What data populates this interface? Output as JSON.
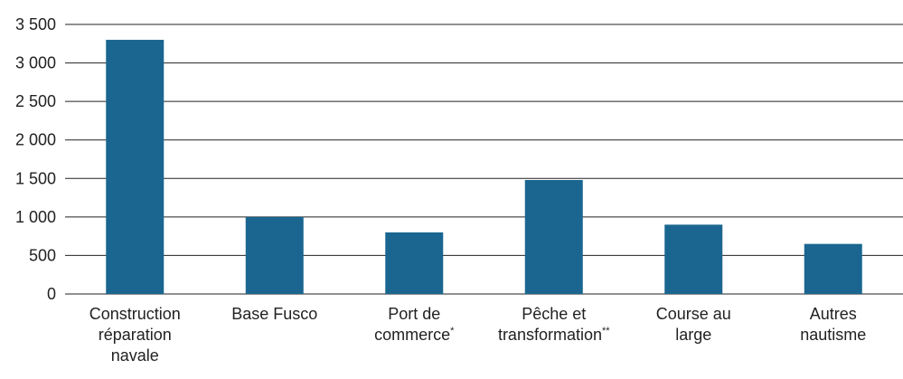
{
  "chart_data": {
    "type": "bar",
    "categories": [
      "Construction\nréparation\nnavale",
      "Base Fusco",
      "Port de\ncommerce*",
      "Pêche et\ntransformation**",
      "Course au\nlarge",
      "Autres\nnautisme"
    ],
    "values": [
      3300,
      1000,
      800,
      1480,
      900,
      650
    ],
    "color": "#1a6690",
    "ylim": [
      0,
      3500
    ],
    "yticks": [
      0,
      500,
      {
        "value": 1000,
        "label": "1 000"
      },
      {
        "value": 1500,
        "label": "1 500"
      },
      {
        "value": 2000,
        "label": "2 000"
      },
      {
        "value": 2500,
        "label": "2 500"
      },
      {
        "value": 3000,
        "label": "3 000"
      },
      {
        "value": 3500,
        "label": "3 500"
      }
    ],
    "grid": true
  }
}
